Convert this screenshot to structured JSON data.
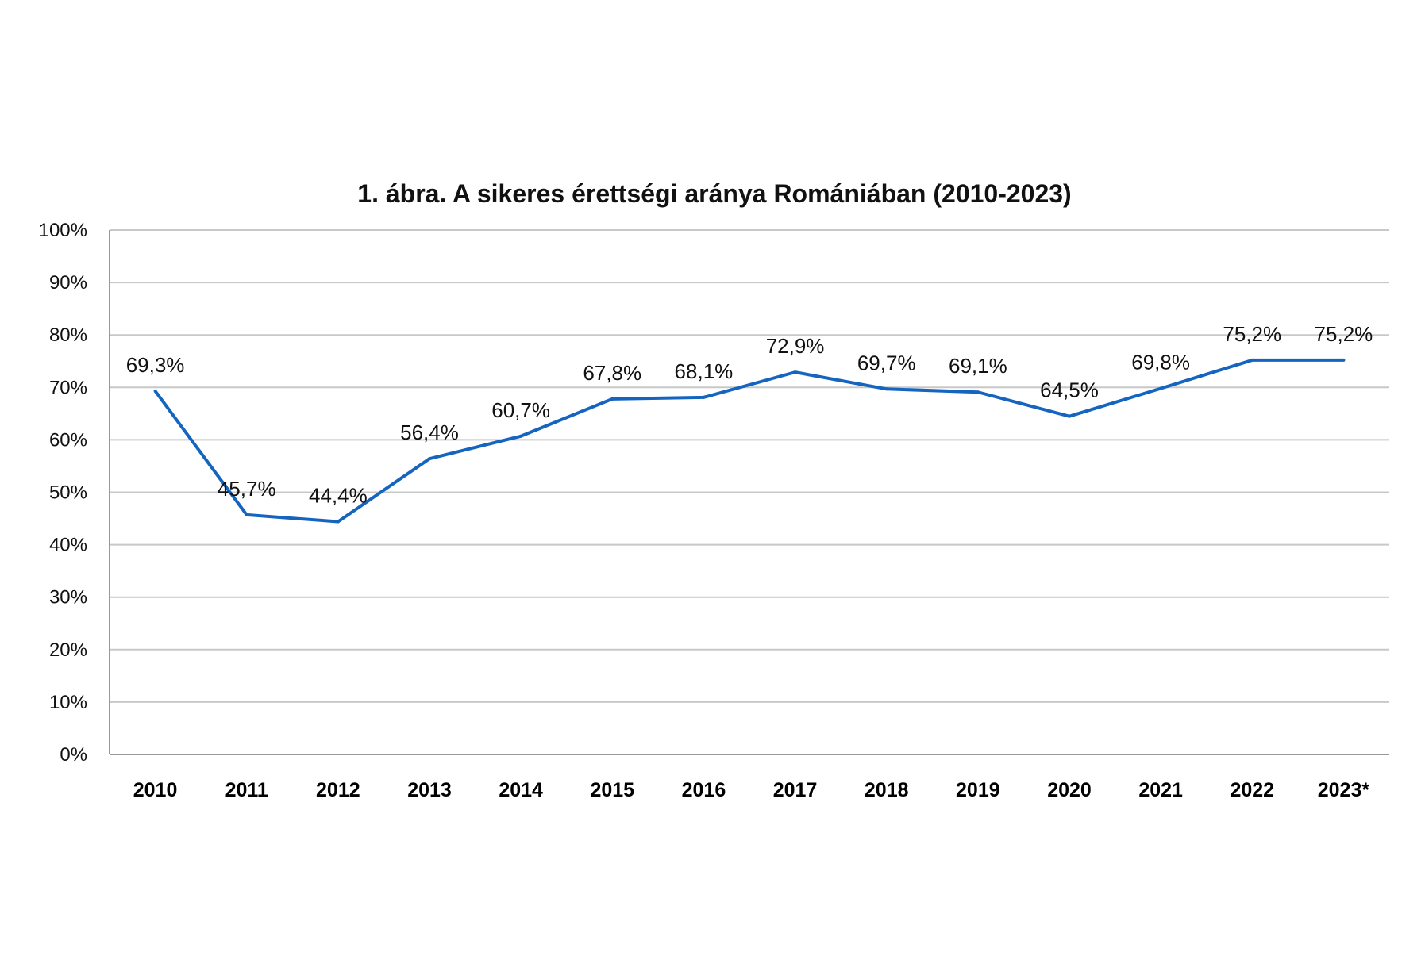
{
  "chart_data": {
    "type": "line",
    "title": "1. ábra. A sikeres érettségi aránya Romániában (2010-2023)",
    "xlabel": "",
    "ylabel": "",
    "categories": [
      "2010",
      "2011",
      "2012",
      "2013",
      "2014",
      "2015",
      "2016",
      "2017",
      "2018",
      "2019",
      "2020",
      "2021",
      "2022",
      "2023*"
    ],
    "values": [
      69.3,
      45.7,
      44.4,
      56.4,
      60.7,
      67.8,
      68.1,
      72.9,
      69.7,
      69.1,
      64.5,
      69.8,
      75.2,
      75.2
    ],
    "data_labels": [
      "69,3%",
      "45,7%",
      "44,4%",
      "56,4%",
      "60,7%",
      "67,8%",
      "68,1%",
      "72,9%",
      "69,7%",
      "69,1%",
      "64,5%",
      "69,8%",
      "75,2%",
      "75,2%"
    ],
    "ylim": [
      0,
      100
    ],
    "yticks": [
      "0%",
      "10%",
      "20%",
      "30%",
      "40%",
      "50%",
      "60%",
      "70%",
      "80%",
      "90%",
      "100%"
    ],
    "grid": true,
    "legend": "none",
    "line_color": "#1565C0",
    "grid_color": "#C8C8C8"
  }
}
